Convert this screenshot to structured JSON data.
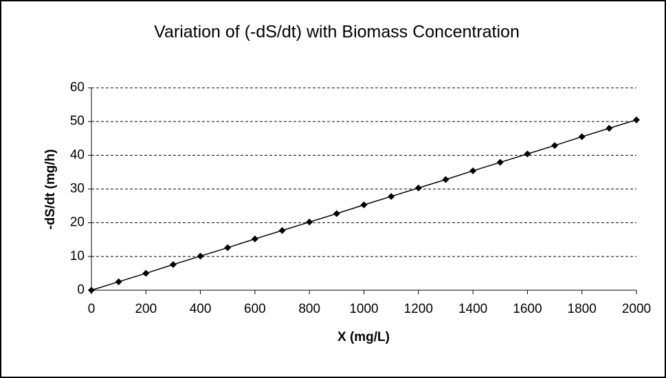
{
  "chart_data": {
    "type": "line",
    "title": "Variation of (-dS/dt) with Biomass Concentration",
    "x_label": "X (mg/L)",
    "y_label": "-dS/dt (mg/h)",
    "x": [
      0,
      100,
      200,
      300,
      400,
      500,
      600,
      700,
      800,
      900,
      1000,
      1100,
      1200,
      1300,
      1400,
      1500,
      1600,
      1700,
      1800,
      1900,
      2000
    ],
    "series": [
      {
        "name": "-dS/dt",
        "color": "#000000",
        "values": [
          0,
          2.5,
          5,
          7.6,
          10.1,
          12.6,
          15.2,
          17.7,
          20.2,
          22.7,
          25.3,
          27.8,
          30.3,
          32.8,
          35.4,
          37.9,
          40.4,
          42.9,
          45.5,
          48,
          50.5
        ]
      }
    ],
    "xlim": [
      0,
      2000
    ],
    "xticks": [
      0,
      200,
      400,
      600,
      800,
      1000,
      1200,
      1400,
      1600,
      1800,
      2000
    ],
    "ylim": [
      0,
      60
    ],
    "yticks": [
      0,
      10,
      20,
      30,
      40,
      50,
      60
    ],
    "grid": true
  }
}
